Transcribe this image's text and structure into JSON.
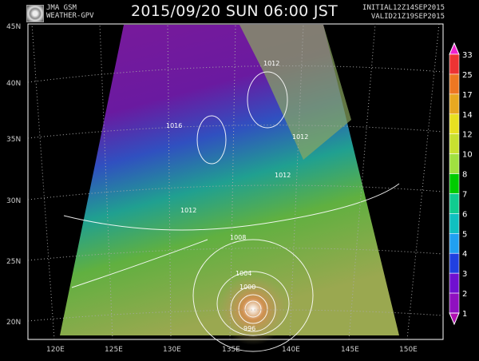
{
  "header": {
    "product_line1": "JMA GSM",
    "product_line2": "WEATHER-GPV",
    "title": "2015/09/20 SUN 06:00 JST",
    "initial": "INITIAL12Z14SEP2015",
    "valid": "VALID21Z19SEP2015"
  },
  "map": {
    "lat_labels": [
      "45N",
      "40N",
      "35N",
      "30N",
      "25N",
      "20N"
    ],
    "lon_labels": [
      "120E",
      "125E",
      "130E",
      "135E",
      "140E",
      "145E",
      "150E"
    ],
    "isobar_labels": [
      "1012",
      "1016",
      "1012",
      "1012",
      "1012",
      "1008",
      "1004",
      "1000",
      "996"
    ]
  },
  "colorbar": {
    "labels": [
      "33",
      "25",
      "17",
      "14",
      "12",
      "10",
      "8",
      "7",
      "6",
      "5",
      "4",
      "3",
      "2",
      "1"
    ],
    "colors": [
      "#ee22cc",
      "#ee3333",
      "#ee7722",
      "#e8a820",
      "#e8e020",
      "#c8e030",
      "#a0e040",
      "#00cc00",
      "#10cc90",
      "#10c0c0",
      "#20a0f0",
      "#2040e0",
      "#7010d0",
      "#9010c0",
      "#b010b0"
    ]
  }
}
